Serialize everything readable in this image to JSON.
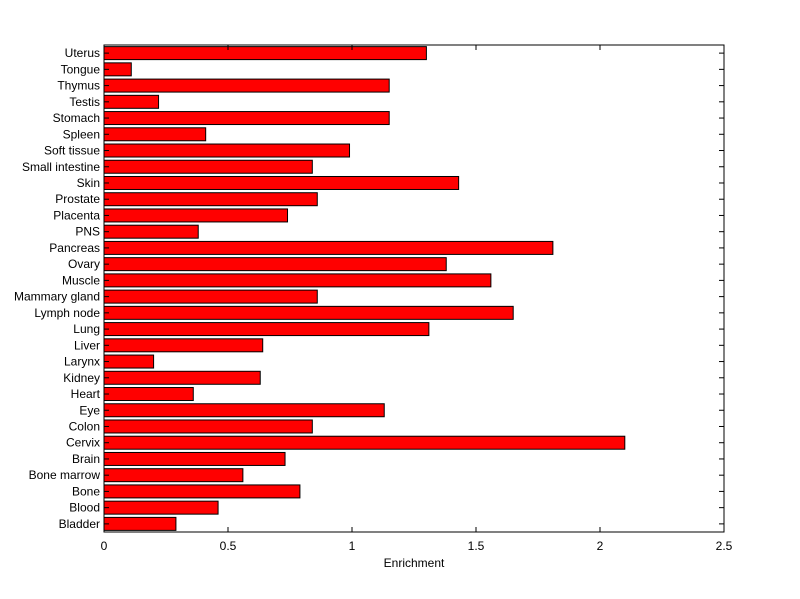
{
  "chart_data": {
    "type": "bar",
    "orientation": "horizontal",
    "categories": [
      "Uterus",
      "Tongue",
      "Thymus",
      "Testis",
      "Stomach",
      "Spleen",
      "Soft tissue",
      "Small intestine",
      "Skin",
      "Prostate",
      "Placenta",
      "PNS",
      "Pancreas",
      "Ovary",
      "Muscle",
      "Mammary gland",
      "Lymph node",
      "Lung",
      "Liver",
      "Larynx",
      "Kidney",
      "Heart",
      "Eye",
      "Colon",
      "Cervix",
      "Brain",
      "Bone marrow",
      "Bone",
      "Blood",
      "Bladder"
    ],
    "values": [
      1.3,
      0.11,
      1.15,
      0.22,
      1.15,
      0.41,
      0.99,
      0.84,
      1.43,
      0.86,
      0.74,
      0.38,
      1.81,
      1.38,
      1.56,
      0.86,
      1.65,
      1.31,
      0.64,
      0.2,
      0.63,
      0.36,
      1.13,
      0.84,
      2.1,
      0.73,
      0.56,
      0.79,
      0.46,
      0.29
    ],
    "xlabel": "Enrichment",
    "ylabel": "",
    "title": "",
    "xlim": [
      0,
      2.5
    ],
    "xticks": [
      "0",
      "0.5",
      "1",
      "1.5",
      "2",
      "2.5"
    ],
    "xtick_values": [
      0,
      0.5,
      1,
      1.5,
      2,
      2.5
    ],
    "grid": false,
    "legend": "none",
    "bar_color": "#ff0000",
    "edge_color": "#000000"
  }
}
